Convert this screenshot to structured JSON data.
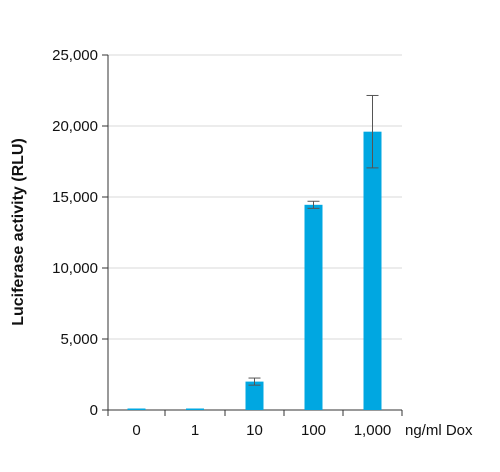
{
  "chart_data": {
    "type": "bar",
    "ylabel": "Luciferase activity (RLU)",
    "xunit_label": "ng/ml Dox",
    "categories": [
      "0",
      "1",
      "10",
      "100",
      "1,000"
    ],
    "values": [
      30,
      80,
      2000,
      14450,
      19600
    ],
    "error": [
      0,
      0,
      250,
      250,
      2550
    ],
    "ylim": [
      0,
      25000
    ],
    "yticks": [
      0,
      5000,
      10000,
      15000,
      20000,
      25000
    ],
    "ytick_labels": [
      "0",
      "5,000",
      "10,000",
      "15,000",
      "20,000",
      "25,000"
    ],
    "grid": true,
    "legend": "none",
    "colors": {
      "bar": "#00a7e1",
      "grid": "#d9d9d9",
      "axis": "#333333",
      "error": "#555555"
    }
  }
}
